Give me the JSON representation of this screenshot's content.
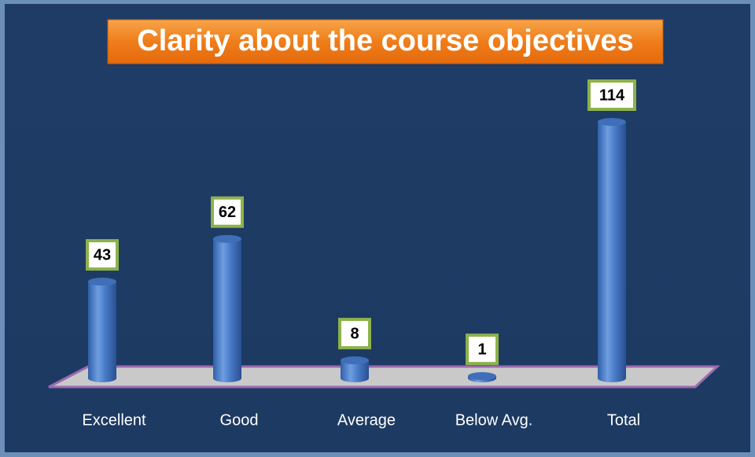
{
  "chart_data": {
    "type": "bar",
    "title": "Clarity about the course objectives",
    "categories": [
      "Excellent",
      "Good",
      "Average",
      "Below Avg.",
      "Total"
    ],
    "values": [
      43,
      62,
      8,
      1,
      114
    ],
    "color": "#4a7bc8"
  }
}
